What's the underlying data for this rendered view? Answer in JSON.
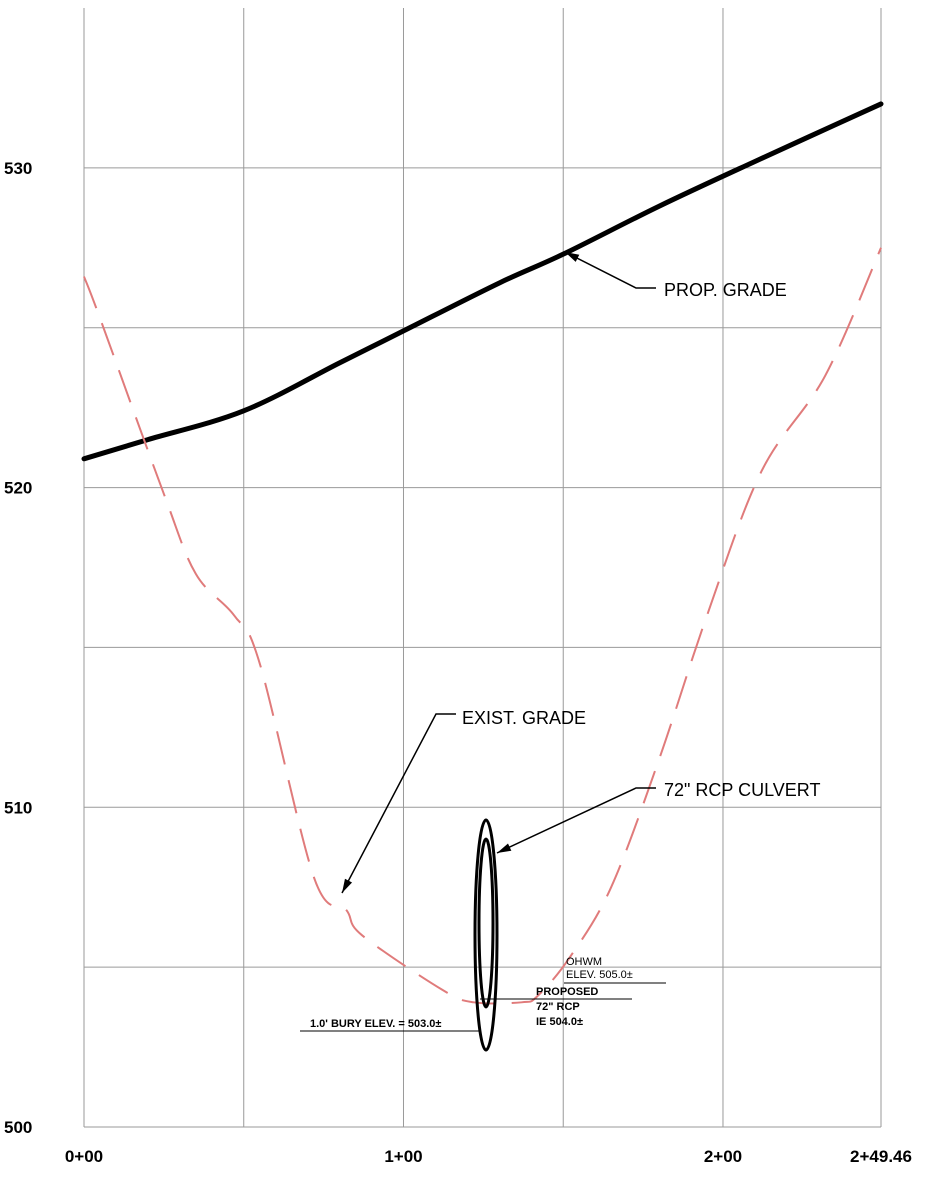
{
  "chart_data": {
    "type": "line",
    "title": "",
    "xlabel": "",
    "ylabel": "",
    "xlim": [
      0,
      249.46
    ],
    "ylim": [
      500,
      535
    ],
    "grid": true,
    "x_tick_labels": [
      "0+00",
      "1+00",
      "2+00",
      "2+49.46"
    ],
    "y_tick_labels": [
      "500",
      "510",
      "520",
      "530"
    ],
    "series": [
      {
        "name": "PROP. GRADE",
        "color": "#000000",
        "style": "solid-thick",
        "x": [
          0,
          20,
          50,
          80,
          100,
          130,
          150,
          180,
          210,
          249.46
        ],
        "y": [
          520.9,
          521.5,
          522.4,
          523.9,
          524.9,
          526.4,
          527.3,
          528.8,
          530.2,
          532.0
        ]
      },
      {
        "name": "EXIST. GRADE",
        "color": "#e07b7b",
        "style": "dashed",
        "x": [
          0,
          5,
          25,
          35,
          47,
          55,
          72,
          82,
          87,
          112,
          122,
          137,
          142,
          152,
          165,
          180,
          195,
          212,
          232,
          249.46
        ],
        "y": [
          526.6,
          525.3,
          519.8,
          517.3,
          516.0,
          514.5,
          507.8,
          506.8,
          506.0,
          504.3,
          503.9,
          503.9,
          504.1,
          505.3,
          507.5,
          511.5,
          516.0,
          520.5,
          523.5,
          527.5
        ]
      }
    ],
    "annotations": {
      "prop_grade": "PROP. GRADE",
      "exist_grade": "EXIST. GRADE",
      "culvert": "72\" RCP CULVERT",
      "ohwm_line1": "OHWM",
      "ohwm_line2": "ELEV. 505.0±",
      "proposed_line1": "PROPOSED",
      "proposed_line2": "72\" RCP",
      "proposed_line3": "IE 504.0±",
      "bury": "1.0' BURY ELEV. = 503.0±"
    }
  }
}
